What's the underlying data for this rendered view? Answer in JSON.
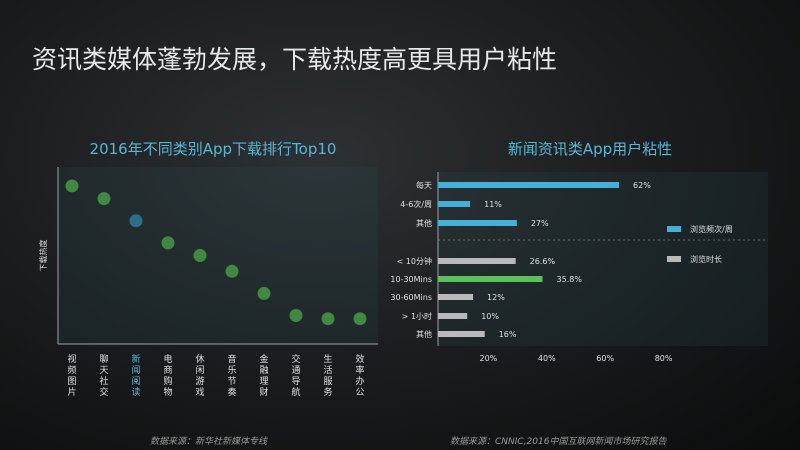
{
  "page": {
    "title": "资讯类媒体蓬勃发展，下载热度高更具用户粘性",
    "left_source": "数据来源：新华社新媒体专线",
    "right_source": "数据来源：CNNIC,2016中国互联网新闻市场研究报告"
  },
  "chart_data": [
    {
      "type": "scatter",
      "title": "2016年不同类别App下载排行Top10",
      "ylabel": "下载热度",
      "xlabel": "",
      "categories": [
        "视频图片",
        "聊天社交",
        "新闻阅读",
        "电商购物",
        "休闲游戏",
        "音乐节奏",
        "金融理财",
        "交通导航",
        "生活服务",
        "效率办公"
      ],
      "values": [
        10,
        9.6,
        8.9,
        8.2,
        7.8,
        7.3,
        6.6,
        5.9,
        5.8,
        5.8
      ],
      "highlight": "新闻阅读",
      "colors": {
        "default": "#3f8a40",
        "highlight": "#2a6e8a",
        "highlight_label": "#56b7d6"
      },
      "grid": false
    },
    {
      "type": "bar",
      "orientation": "horizontal",
      "title": "新闻资讯类App用户粘性",
      "xlim": [
        0,
        80
      ],
      "xticks": [
        "20%",
        "40%",
        "60%",
        "80%"
      ],
      "groups": [
        {
          "name": "浏览频次/周",
          "color": "#45b0d6",
          "categories": [
            "每天",
            "4-6次/周",
            "其他"
          ],
          "values": [
            62,
            11,
            27
          ],
          "labels": [
            "62%",
            "11%",
            "27%"
          ]
        },
        {
          "name": "浏览时长",
          "color": "#b9b9b9",
          "highlight_color": "#5cc15c",
          "categories": [
            "< 10分钟",
            "10-30Mins",
            "30-60Mins",
            "> 1小时",
            "其他"
          ],
          "values": [
            26.6,
            35.8,
            12,
            10,
            16
          ],
          "labels": [
            "26.6%",
            "35.8%",
            "12%",
            "10%",
            "16%"
          ],
          "highlight": "10-30Mins"
        }
      ],
      "legend": [
        "浏览频次/周",
        "浏览时长"
      ],
      "legend_position": "right"
    }
  ]
}
